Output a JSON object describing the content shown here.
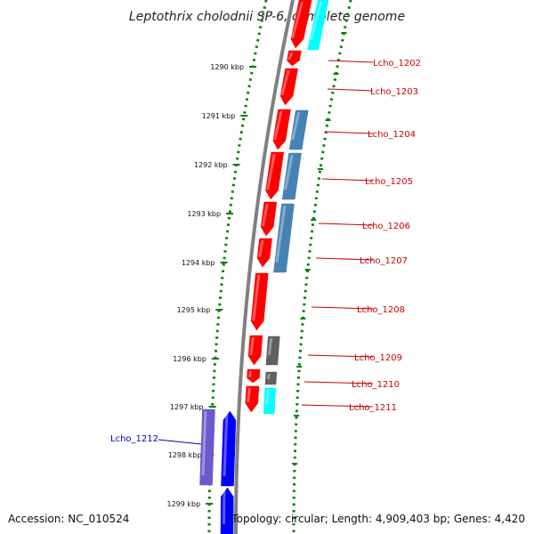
{
  "title": "Leptothrix cholodnii SP-6, complete genome",
  "accession": "Accession: NC_010524",
  "topology": "Topology: circular; Length: 4,909,403 bp; Genes: 4,420",
  "colors": {
    "forward": "#ff0000",
    "reverse": "#0000ff",
    "track_blue": "#4682b4",
    "track_gray": "#606060",
    "track_cyan": "#00ffff",
    "track_purple": "#6a5acd",
    "ruler": "#008000",
    "backbone": "#808080",
    "label_right": "#cc0000",
    "label_left": "#0000cc"
  },
  "ticks": [
    {
      "label": "1290 kbp"
    },
    {
      "label": "1291 kbp"
    },
    {
      "label": "1292 kbp"
    },
    {
      "label": "1293 kbp"
    },
    {
      "label": "1294 kbp"
    },
    {
      "label": "1295 kbp"
    },
    {
      "label": "1296 kbp"
    },
    {
      "label": "1297 kbp"
    },
    {
      "label": "1298 kbp"
    },
    {
      "label": "1299 kbp"
    }
  ],
  "genes": [
    {
      "label": "Lcho_1202"
    },
    {
      "label": "Lcho_1203"
    },
    {
      "label": "Lcho_1204"
    },
    {
      "label": "Lcho_1205"
    },
    {
      "label": "Lcho_1206"
    },
    {
      "label": "Lcho_1207"
    },
    {
      "label": "Lcho_1208"
    },
    {
      "label": "Lcho_1209"
    },
    {
      "label": "Lcho_1210"
    },
    {
      "label": "Lcho_1211"
    },
    {
      "label": "Lcho_1212"
    }
  ]
}
